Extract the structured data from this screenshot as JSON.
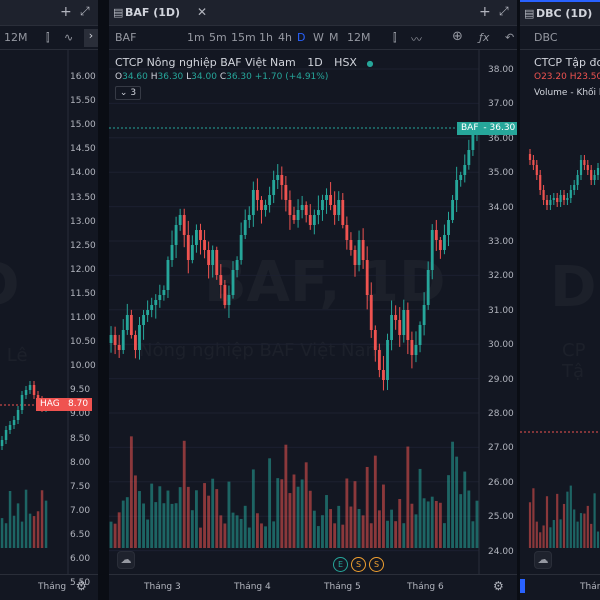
{
  "left_panel": {
    "timeframe_label": "12M",
    "price_axis": [
      "16.00",
      "15.50",
      "15.00",
      "14.50",
      "14.00",
      "13.50",
      "13.00",
      "12.50",
      "12.00",
      "11.50",
      "11.00",
      "10.50",
      "10.00",
      "9.50",
      "9.00",
      "8.50",
      "8.00",
      "7.50",
      "7.00",
      "6.50",
      "6.00",
      "5.50"
    ],
    "price_tag_symbol": "HAG",
    "price_tag_value": "8.70",
    "price_tag_color": "#ef5350",
    "watermark": "D",
    "watermark_sub": "a Lê",
    "time_label": "Tháng"
  },
  "mid_panel": {
    "tab_title": "BAF (1D)",
    "symbol": "BAF",
    "timeframes": [
      "1m",
      "5m",
      "15m",
      "1h",
      "4h",
      "D",
      "W",
      "M",
      "12M"
    ],
    "active_timeframe": "D",
    "legend": {
      "name": "CTCP Nông nghiệp BAF Việt Nam",
      "interval": "1D",
      "exchange": "HSX",
      "o_label": "O",
      "o_value": "34.60",
      "h_label": "H",
      "h_value": "36.30",
      "l_label": "L",
      "l_value": "34.00",
      "c_label": "C",
      "c_value": "36.30",
      "change": "+1.70 (+4.91%)",
      "indicator_count": "3"
    },
    "watermark": "BAF, 1D",
    "watermark_sub": "Nông nghiệp BAF Việt Nam",
    "price_axis": [
      "38.00",
      "37.00",
      "36.00",
      "35.00",
      "34.00",
      "33.00",
      "32.00",
      "31.00",
      "30.00",
      "29.00",
      "28.00",
      "27.00",
      "26.00",
      "25.00",
      "24.00"
    ],
    "price_tag_symbol": "BAF",
    "price_tag_value": "36.30",
    "time_labels": [
      "Tháng 3",
      "Tháng 4",
      "Tháng 5",
      "Tháng 6"
    ],
    "events": [
      "E",
      "S",
      "S"
    ],
    "colors": {
      "up": "#26a69a",
      "down": "#ef5350"
    }
  },
  "right_panel": {
    "tab_title": "DBC (1D)",
    "symbol": "DBC",
    "legend_name": "CTCP Tập đo",
    "ohlc": "O23.20 H23.50",
    "volume_label": "Volume - Khối lư",
    "watermark": "DB",
    "watermark_sub": "CP Tậ",
    "time_label": "Tháng"
  }
}
